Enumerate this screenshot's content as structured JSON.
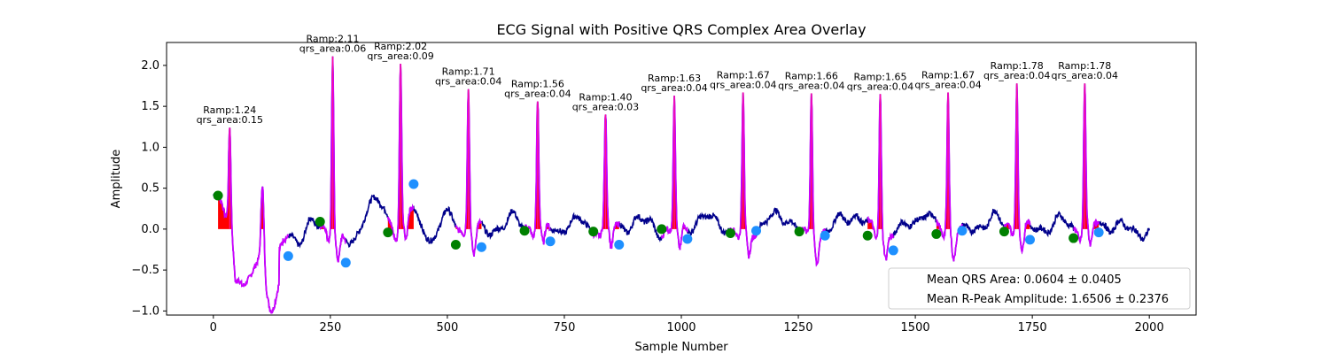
{
  "chart_data": {
    "type": "line",
    "title": "ECG Signal with Positive QRS Complex Area Overlay",
    "xlabel": "Sample Number",
    "ylabel": "Amplitude",
    "xlim": [
      -100,
      2100
    ],
    "ylim": [
      -1.05,
      2.28
    ],
    "xticks": [
      0,
      250,
      500,
      750,
      1000,
      1250,
      1500,
      1750,
      2000
    ],
    "yticks": [
      -1.0,
      -0.5,
      0.0,
      0.5,
      1.0,
      1.5,
      2.0
    ],
    "xtick_labels": [
      "0",
      "250",
      "500",
      "750",
      "1000",
      "1250",
      "1500",
      "1750",
      "2000"
    ],
    "ytick_labels": [
      "−1.0",
      "−0.5",
      "0.0",
      "0.5",
      "1.0",
      "1.5",
      "2.0"
    ],
    "grid": false,
    "colors": {
      "ecg": "#00008b",
      "qrs_segment": "#cc00ff",
      "area_fill": "#ff0000",
      "q_marker": "#008000",
      "s_marker": "#1e90ff",
      "r_peak_line": "#ff1493"
    },
    "beats": [
      {
        "r": 35,
        "ramp": 1.24,
        "area": 0.15,
        "label_lines": [
          "Ramp:1.24",
          "qrs_area:0.15"
        ]
      },
      {
        "r": 255,
        "ramp": 2.11,
        "area": 0.06,
        "label_lines": [
          "Ramp:2.11",
          "qrs_area:0.06"
        ]
      },
      {
        "r": 400,
        "ramp": 2.02,
        "area": 0.09,
        "label_lines": [
          "Ramp:2.02",
          "qrs_area:0.09"
        ]
      },
      {
        "r": 545,
        "ramp": 1.71,
        "area": 0.04,
        "label_lines": [
          "Ramp:1.71",
          "qrs_area:0.04"
        ]
      },
      {
        "r": 693,
        "ramp": 1.56,
        "area": 0.04,
        "label_lines": [
          "Ramp:1.56",
          "qrs_area:0.04"
        ]
      },
      {
        "r": 838,
        "ramp": 1.4,
        "area": 0.03,
        "label_lines": [
          "Ramp:1.40",
          "qrs_area:0.03"
        ]
      },
      {
        "r": 985,
        "ramp": 1.63,
        "area": 0.04,
        "label_lines": [
          "Ramp:1.63",
          "qrs_area:0.04"
        ]
      },
      {
        "r": 1132,
        "ramp": 1.67,
        "area": 0.04,
        "label_lines": [
          "Ramp:1.67",
          "qrs_area:0.04"
        ]
      },
      {
        "r": 1278,
        "ramp": 1.66,
        "area": 0.04,
        "label_lines": [
          "Ramp:1.66",
          "qrs_area:0.04"
        ]
      },
      {
        "r": 1425,
        "ramp": 1.65,
        "area": 0.04,
        "label_lines": [
          "Ramp:1.65",
          "qrs_area:0.04"
        ]
      },
      {
        "r": 1570,
        "ramp": 1.67,
        "area": 0.04,
        "label_lines": [
          "Ramp:1.67",
          "qrs_area:0.04"
        ]
      },
      {
        "r": 1717,
        "ramp": 1.78,
        "area": 0.04,
        "label_lines": [
          "Ramp:1.78",
          "qrs_area:0.04"
        ]
      },
      {
        "r": 1862,
        "ramp": 1.78,
        "area": 0.04,
        "label_lines": [
          "Ramp:1.78",
          "qrs_area:0.04"
        ]
      }
    ],
    "q_points": [
      {
        "x": 10,
        "y": 0.41
      },
      {
        "x": 228,
        "y": 0.09
      },
      {
        "x": 373,
        "y": -0.04
      },
      {
        "x": 518,
        "y": -0.19
      },
      {
        "x": 665,
        "y": -0.02
      },
      {
        "x": 812,
        "y": -0.03
      },
      {
        "x": 958,
        "y": 0.0
      },
      {
        "x": 1105,
        "y": -0.05
      },
      {
        "x": 1252,
        "y": -0.03
      },
      {
        "x": 1398,
        "y": -0.08
      },
      {
        "x": 1545,
        "y": -0.06
      },
      {
        "x": 1690,
        "y": -0.03
      },
      {
        "x": 1838,
        "y": -0.11
      }
    ],
    "s_points": [
      {
        "x": 160,
        "y": -0.33
      },
      {
        "x": 283,
        "y": -0.41
      },
      {
        "x": 428,
        "y": 0.55
      },
      {
        "x": 573,
        "y": -0.22
      },
      {
        "x": 720,
        "y": -0.15
      },
      {
        "x": 867,
        "y": -0.19
      },
      {
        "x": 1013,
        "y": -0.12
      },
      {
        "x": 1160,
        "y": -0.02
      },
      {
        "x": 1307,
        "y": -0.08
      },
      {
        "x": 1453,
        "y": -0.26
      },
      {
        "x": 1600,
        "y": -0.02
      },
      {
        "x": 1745,
        "y": -0.13
      },
      {
        "x": 1892,
        "y": -0.04
      }
    ],
    "legend": {
      "placement": "lower right",
      "entries": [
        "Mean QRS Area: 0.0604 ± 0.0405",
        "Mean R-Peak Amplitude: 1.6506 ± 0.2376"
      ]
    }
  }
}
